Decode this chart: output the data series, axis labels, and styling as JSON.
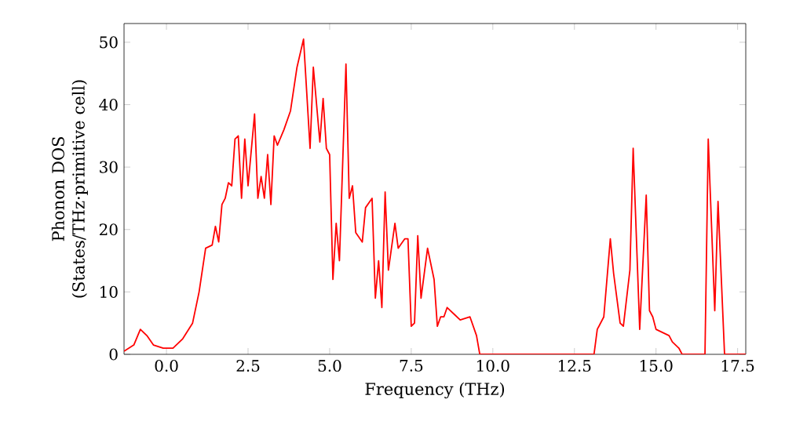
{
  "chart_data": {
    "type": "line",
    "xlabel": "Frequency (THz)",
    "ylabel": "Phonon DOS (States/THz·primitive cell)",
    "x": [
      -1.3,
      -1.0,
      -0.8,
      -0.6,
      -0.4,
      -0.1,
      0.2,
      0.5,
      0.8,
      1.0,
      1.2,
      1.4,
      1.5,
      1.6,
      1.7,
      1.8,
      1.9,
      2.0,
      2.1,
      2.2,
      2.3,
      2.4,
      2.5,
      2.7,
      2.8,
      2.9,
      3.0,
      3.1,
      3.2,
      3.3,
      3.4,
      3.6,
      3.8,
      4.0,
      4.2,
      4.4,
      4.5,
      4.7,
      4.8,
      4.9,
      5.0,
      5.1,
      5.2,
      5.3,
      5.5,
      5.6,
      5.7,
      5.8,
      6.0,
      6.1,
      6.3,
      6.4,
      6.5,
      6.6,
      6.7,
      6.8,
      7.0,
      7.1,
      7.3,
      7.4,
      7.5,
      7.6,
      7.7,
      7.8,
      8.0,
      8.2,
      8.3,
      8.4,
      8.5,
      8.6,
      8.8,
      9.0,
      9.3,
      9.5,
      9.6,
      13.1,
      13.2,
      13.4,
      13.6,
      13.7,
      13.9,
      14.0,
      14.2,
      14.3,
      14.5,
      14.7,
      14.8,
      14.9,
      15.0,
      15.2,
      15.4,
      15.5,
      15.7,
      15.8,
      16.5,
      16.6,
      16.8,
      16.9,
      17.1,
      17.75
    ],
    "series": [
      {
        "color": "#ff0000",
        "values": [
          0.5,
          1.5,
          4,
          3,
          1.5,
          1,
          1,
          2.5,
          5,
          10,
          17,
          17.5,
          20.5,
          18,
          24,
          25,
          27.5,
          27,
          34.5,
          35,
          25,
          34.5,
          27,
          38.5,
          25,
          28.5,
          25,
          32,
          24,
          35,
          33.5,
          36,
          39,
          46,
          50.5,
          33,
          46,
          34,
          41,
          33,
          32,
          12,
          21,
          15,
          46.5,
          25,
          27,
          19.5,
          18,
          23.5,
          25,
          9,
          15,
          7.5,
          26,
          13.5,
          21,
          17,
          18.5,
          18.5,
          4.5,
          5,
          19,
          9,
          17,
          12,
          4.5,
          6,
          6,
          7.5,
          6.5,
          5.5,
          6,
          3,
          0,
          0,
          4,
          6,
          18.5,
          13,
          5,
          4.5,
          13.5,
          33,
          4,
          25.5,
          7,
          6,
          4,
          3.5,
          3,
          2,
          1,
          0,
          0,
          34.5,
          7,
          24.5,
          0,
          0
        ]
      }
    ],
    "xlim": [
      -1.3,
      17.75
    ],
    "ylim": [
      0,
      53
    ],
    "xticks": [
      {
        "value": 0,
        "label": "0.0"
      },
      {
        "value": 2.5,
        "label": "2.5"
      },
      {
        "value": 5,
        "label": "5.0"
      },
      {
        "value": 7.5,
        "label": "7.5"
      },
      {
        "value": 10,
        "label": "10.0"
      },
      {
        "value": 12.5,
        "label": "12.5"
      },
      {
        "value": 15,
        "label": "15.0"
      },
      {
        "value": 17.5,
        "label": "17.5"
      }
    ],
    "yticks": [
      0,
      10,
      20,
      30,
      40,
      50
    ],
    "grid": false,
    "legend": false,
    "marker": "none",
    "line_style": "solid"
  }
}
